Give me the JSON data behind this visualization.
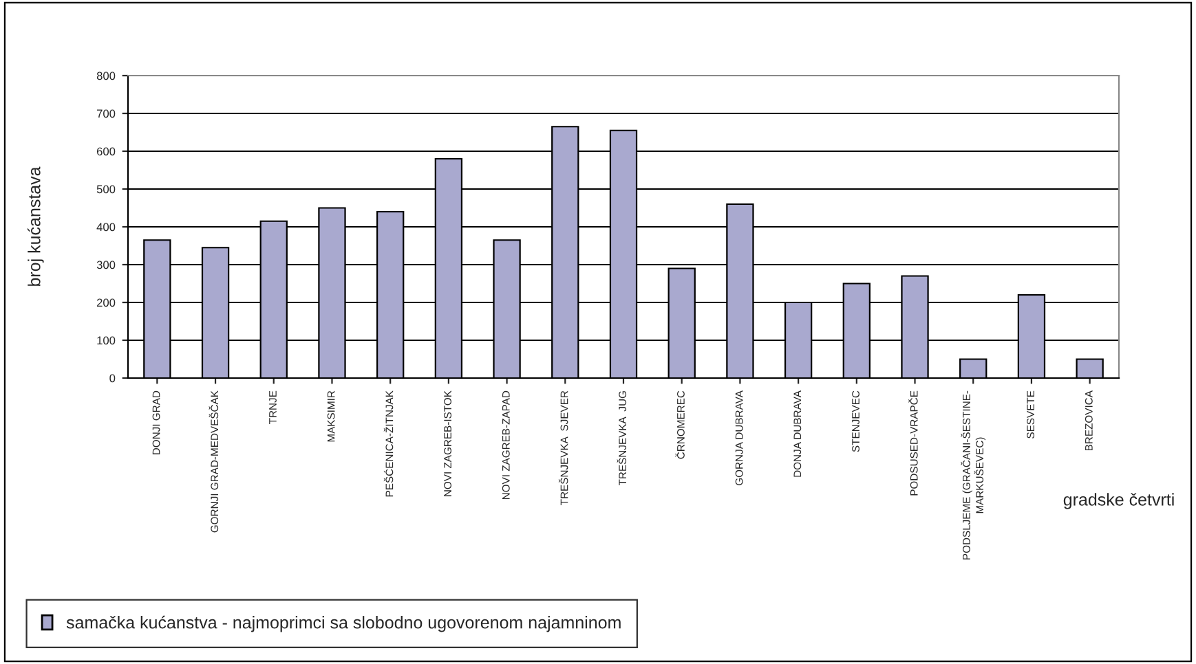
{
  "chart_data": {
    "type": "bar",
    "xlabel": "gradske četvrti",
    "ylabel": "broj kućanstava",
    "categories": [
      "DONJI GRAD",
      "GORNJI GRAD-MEDVEŠČAK",
      "TRNJE",
      "MAKSIMIR",
      "PEŠĆENICA-ŽITNJAK",
      "NOVI ZAGREB-ISTOK",
      "NOVI ZAGREB-ZAPAD",
      "TREŠNJEVKA  SJEVER",
      "TREŠNJEVKA  JUG",
      "ČRNOMEREC",
      "GORNJA DUBRAVA",
      "DONJA DUBRAVA",
      "STENJEVEC",
      "PODSUSED-VRAPČE",
      "PODSLJEME (GRAČANI-ŠESTINE-\nMARKUŠEVEC)",
      "SESVETE",
      "BREZOVICA"
    ],
    "series": [
      {
        "name": "samačka kućanstva - najmoprimci sa slobodno ugovorenom najamninom",
        "color": "#a9a9cf",
        "values": [
          365,
          345,
          415,
          450,
          440,
          580,
          365,
          665,
          655,
          290,
          460,
          200,
          250,
          270,
          50,
          220,
          50
        ]
      }
    ],
    "ylim": [
      0,
      800
    ],
    "yticks": [
      0,
      100,
      200,
      300,
      400,
      500,
      600,
      700,
      800
    ],
    "grid": "y",
    "legend": "bottom left"
  }
}
